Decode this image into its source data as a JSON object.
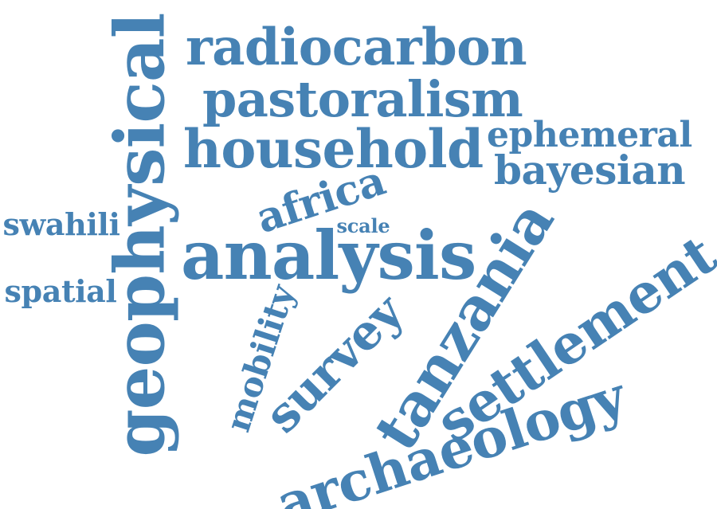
{
  "word_color": "#4682b4",
  "words": [
    {
      "id": "geophysical",
      "text": "geophysical",
      "rotation": "vertical"
    },
    {
      "id": "radiocarbon",
      "text": "radiocarbon",
      "rotation": "horizontal"
    },
    {
      "id": "pastoralism",
      "text": "pastoralism",
      "rotation": "horizontal"
    },
    {
      "id": "household",
      "text": "household",
      "rotation": "horizontal"
    },
    {
      "id": "ephemeral",
      "text": "ephemeral",
      "rotation": "horizontal"
    },
    {
      "id": "bayesian",
      "text": "bayesian",
      "rotation": "horizontal"
    },
    {
      "id": "africa",
      "text": "africa",
      "rotation": "tilted"
    },
    {
      "id": "swahili",
      "text": "swahili",
      "rotation": "horizontal"
    },
    {
      "id": "scale",
      "text": "scale",
      "rotation": "horizontal"
    },
    {
      "id": "analysis",
      "text": "analysis",
      "rotation": "horizontal"
    },
    {
      "id": "spatial",
      "text": "spatial",
      "rotation": "horizontal"
    },
    {
      "id": "mobility",
      "text": "mobility",
      "rotation": "tilted"
    },
    {
      "id": "survey",
      "text": "survey",
      "rotation": "tilted"
    },
    {
      "id": "tanzania",
      "text": "tanzania",
      "rotation": "tilted"
    },
    {
      "id": "settlement",
      "text": "settlement",
      "rotation": "tilted"
    },
    {
      "id": "archaeology",
      "text": "archaeology",
      "rotation": "tilted"
    }
  ]
}
